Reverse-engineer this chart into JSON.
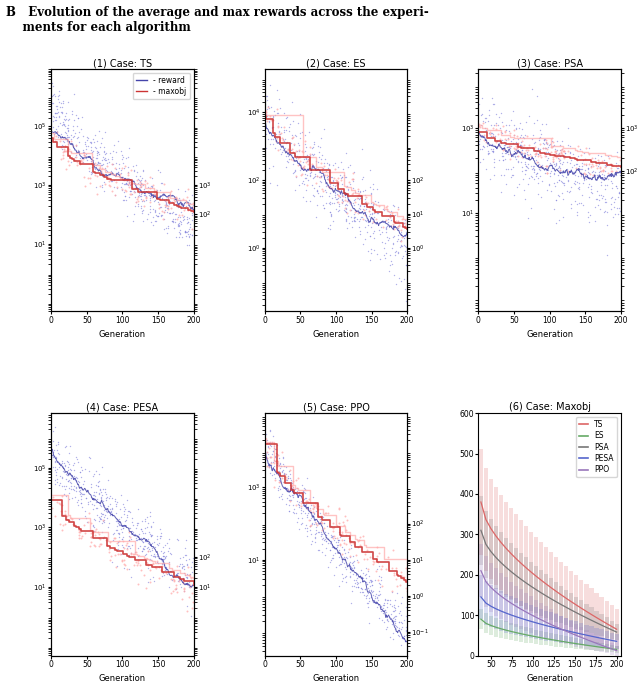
{
  "title_B": "B",
  "title_text": "Evolution of the average and max rewards across the experi-\nments for each algorithm",
  "subplot_titles": [
    "(1) Case: TS",
    "(2) Case: ES",
    "(3) Case: PSA",
    "(4) Case: PESA",
    "(5) Case: PPO",
    "(6) Case: Maxobj"
  ],
  "legend_reward_label": "- reward",
  "legend_maxobj_label": "- maxobj",
  "reward_color": "#8888dd",
  "maxobj_color": "#ffaaaa",
  "reward_color_dark": "#4444aa",
  "maxobj_color_dark": "#cc3333",
  "xlabel": "Generation",
  "maxobj_ylim": [
    0,
    600
  ],
  "maxobj_yticks": [
    0,
    100,
    200,
    300,
    400,
    500,
    600
  ],
  "maxobj_xticks": [
    50,
    75,
    100,
    125,
    150,
    175,
    200
  ],
  "algo_colors": {
    "TS": "#dd6666",
    "ES": "#66aa66",
    "PSA": "#777777",
    "PESA": "#5566cc",
    "PPO": "#9977bb"
  },
  "algo_list": [
    "TS",
    "ES",
    "PSA",
    "PESA",
    "PPO"
  ]
}
